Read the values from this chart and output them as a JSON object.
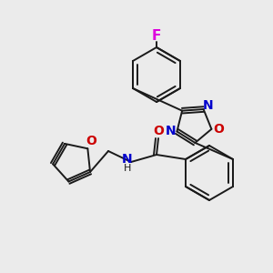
{
  "background_color": "#ebebeb",
  "bond_color": "#1a1a1a",
  "bond_width": 1.4,
  "atom_colors": {
    "F": "#dd00dd",
    "N": "#0000cc",
    "O": "#cc0000",
    "H": "#1a1a1a",
    "C": "#1a1a1a"
  },
  "font_size": 10,
  "fig_size": [
    3.0,
    3.0
  ],
  "dpi": 100
}
